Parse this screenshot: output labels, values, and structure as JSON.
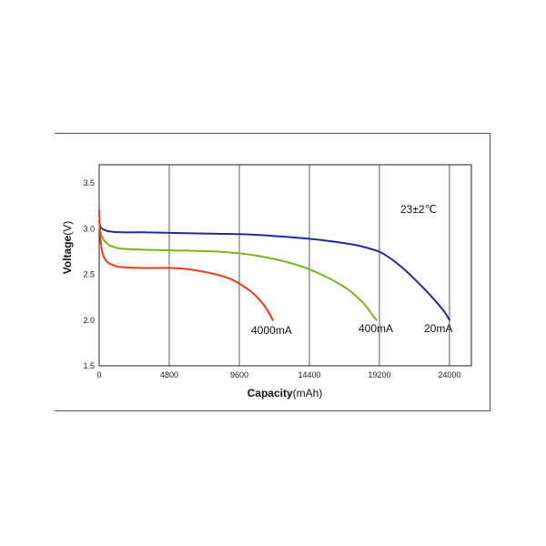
{
  "chart_data": {
    "type": "line",
    "title": "",
    "xlabel": "Capacity",
    "xlabel_unit": "(mAh)",
    "ylabel": "Voltage",
    "ylabel_unit": "(V)",
    "xlim": [
      0,
      25500
    ],
    "ylim": [
      1.5,
      3.7
    ],
    "x_ticks": [
      0,
      4800,
      9600,
      14400,
      19200,
      24000
    ],
    "x_tick_labels": [
      "0",
      "4800",
      "9600",
      "14400",
      "19200",
      "24000"
    ],
    "y_ticks": [
      1.5,
      2.0,
      2.5,
      3.0,
      3.5
    ],
    "y_tick_labels": [
      "1.5",
      "2.0",
      "2.5",
      "3.0",
      "3.5"
    ],
    "grid": true,
    "annotation": "23±2℃",
    "series": [
      {
        "name": "20mA",
        "color": "#1f2aa0",
        "x": [
          0,
          100,
          300,
          700,
          1500,
          3000,
          6000,
          9600,
          12000,
          14400,
          16000,
          17600,
          18800,
          19300,
          20000,
          20800,
          21600,
          22400,
          23200,
          23700,
          24000
        ],
        "y": [
          3.08,
          3.02,
          2.99,
          2.97,
          2.96,
          2.96,
          2.95,
          2.94,
          2.92,
          2.89,
          2.86,
          2.82,
          2.77,
          2.74,
          2.67,
          2.57,
          2.45,
          2.32,
          2.18,
          2.08,
          2.0
        ]
      },
      {
        "name": "400mA",
        "color": "#7ab51d",
        "x": [
          0,
          100,
          300,
          600,
          1000,
          1600,
          3000,
          6000,
          8000,
          9600,
          11000,
          12500,
          14000,
          15200,
          16200,
          17000,
          17700,
          18300,
          18700,
          19000
        ],
        "y": [
          3.08,
          2.95,
          2.88,
          2.83,
          2.8,
          2.78,
          2.77,
          2.76,
          2.75,
          2.73,
          2.7,
          2.65,
          2.58,
          2.5,
          2.42,
          2.34,
          2.25,
          2.15,
          2.06,
          2.0
        ]
      },
      {
        "name": "4000mA",
        "color": "#f03a1a",
        "x": [
          0,
          60,
          150,
          300,
          600,
          1000,
          1500,
          3000,
          5000,
          6400,
          8000,
          9000,
          9800,
          10500,
          11000,
          11400,
          11700,
          11900
        ],
        "y": [
          3.2,
          2.95,
          2.8,
          2.7,
          2.63,
          2.6,
          2.58,
          2.57,
          2.57,
          2.55,
          2.5,
          2.45,
          2.38,
          2.3,
          2.22,
          2.14,
          2.06,
          2.0
        ]
      }
    ]
  }
}
